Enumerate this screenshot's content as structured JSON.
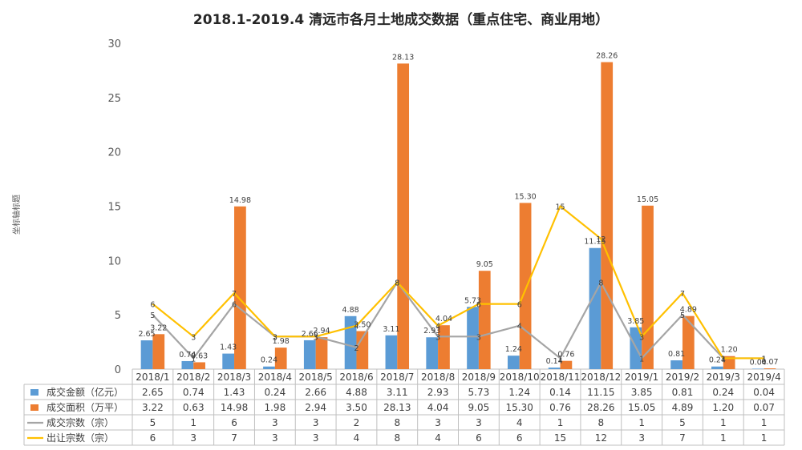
{
  "chart_data": {
    "type": "bar",
    "title": "2018.1-2019.4 清远市各月土地成交数据（重点住宅、商业用地）",
    "ylabel": "坐标轴标题",
    "ylim": [
      0,
      30
    ],
    "yticks": [
      0,
      5,
      10,
      15,
      20,
      25,
      30
    ],
    "grid": false,
    "legend": "data-table",
    "categories": [
      "2018/1",
      "2018/2",
      "2018/3",
      "2018/4",
      "2018/5",
      "2018/6",
      "2018/7",
      "2018/8",
      "2018/9",
      "2018/10",
      "2018/11",
      "2018/12",
      "2019/1",
      "2019/2",
      "2019/3",
      "2019/4"
    ],
    "series": [
      {
        "name": "成交金额（亿元）",
        "kind": "bar",
        "color": "#5B9BD5",
        "values": [
          2.65,
          0.74,
          1.43,
          0.24,
          2.66,
          4.88,
          3.11,
          2.93,
          5.73,
          1.24,
          0.14,
          11.15,
          3.85,
          0.81,
          0.24,
          0.04
        ],
        "labels": [
          "2.65",
          "0.74",
          "1.43",
          "0.24",
          "2.66",
          "4.88",
          "3.11",
          "2.93",
          "5.73",
          "1.24",
          "0.14",
          "11.15",
          "3.85",
          "0.81",
          "0.24",
          "0.04"
        ]
      },
      {
        "name": "成交面积（万平）",
        "kind": "bar",
        "color": "#ED7D31",
        "values": [
          3.22,
          0.63,
          14.98,
          1.98,
          2.94,
          3.5,
          28.13,
          4.04,
          9.05,
          15.3,
          0.76,
          28.26,
          15.05,
          4.89,
          1.2,
          0.07
        ],
        "labels": [
          "3.22",
          "0.63",
          "14.98",
          "1.98",
          "2.94",
          "3.50",
          "28.13",
          "4.04",
          "9.05",
          "15.30",
          "0.76",
          "28.26",
          "15.05",
          "4.89",
          "1.20",
          "0.07"
        ]
      },
      {
        "name": "成交宗数（宗）",
        "kind": "line",
        "color": "#A5A5A5",
        "values": [
          5,
          1,
          6,
          3,
          3,
          2,
          8,
          3,
          3,
          4,
          1,
          8,
          1,
          5,
          1,
          1
        ],
        "labels": [
          "5",
          "1",
          "6",
          "3",
          "3",
          "2",
          "8",
          "3",
          "3",
          "4",
          "1",
          "8",
          "1",
          "5",
          "1",
          "1"
        ]
      },
      {
        "name": "出让宗数（宗）",
        "kind": "line",
        "color": "#FFC000",
        "values": [
          6,
          3,
          7,
          3,
          3,
          4,
          8,
          4,
          6,
          6,
          15,
          12,
          3,
          7,
          1,
          1
        ],
        "labels": [
          "6",
          "3",
          "7",
          "3",
          "3",
          "4",
          "8",
          "4",
          "6",
          "6",
          "15",
          "12",
          "3",
          "7",
          "1",
          "1"
        ]
      }
    ]
  }
}
